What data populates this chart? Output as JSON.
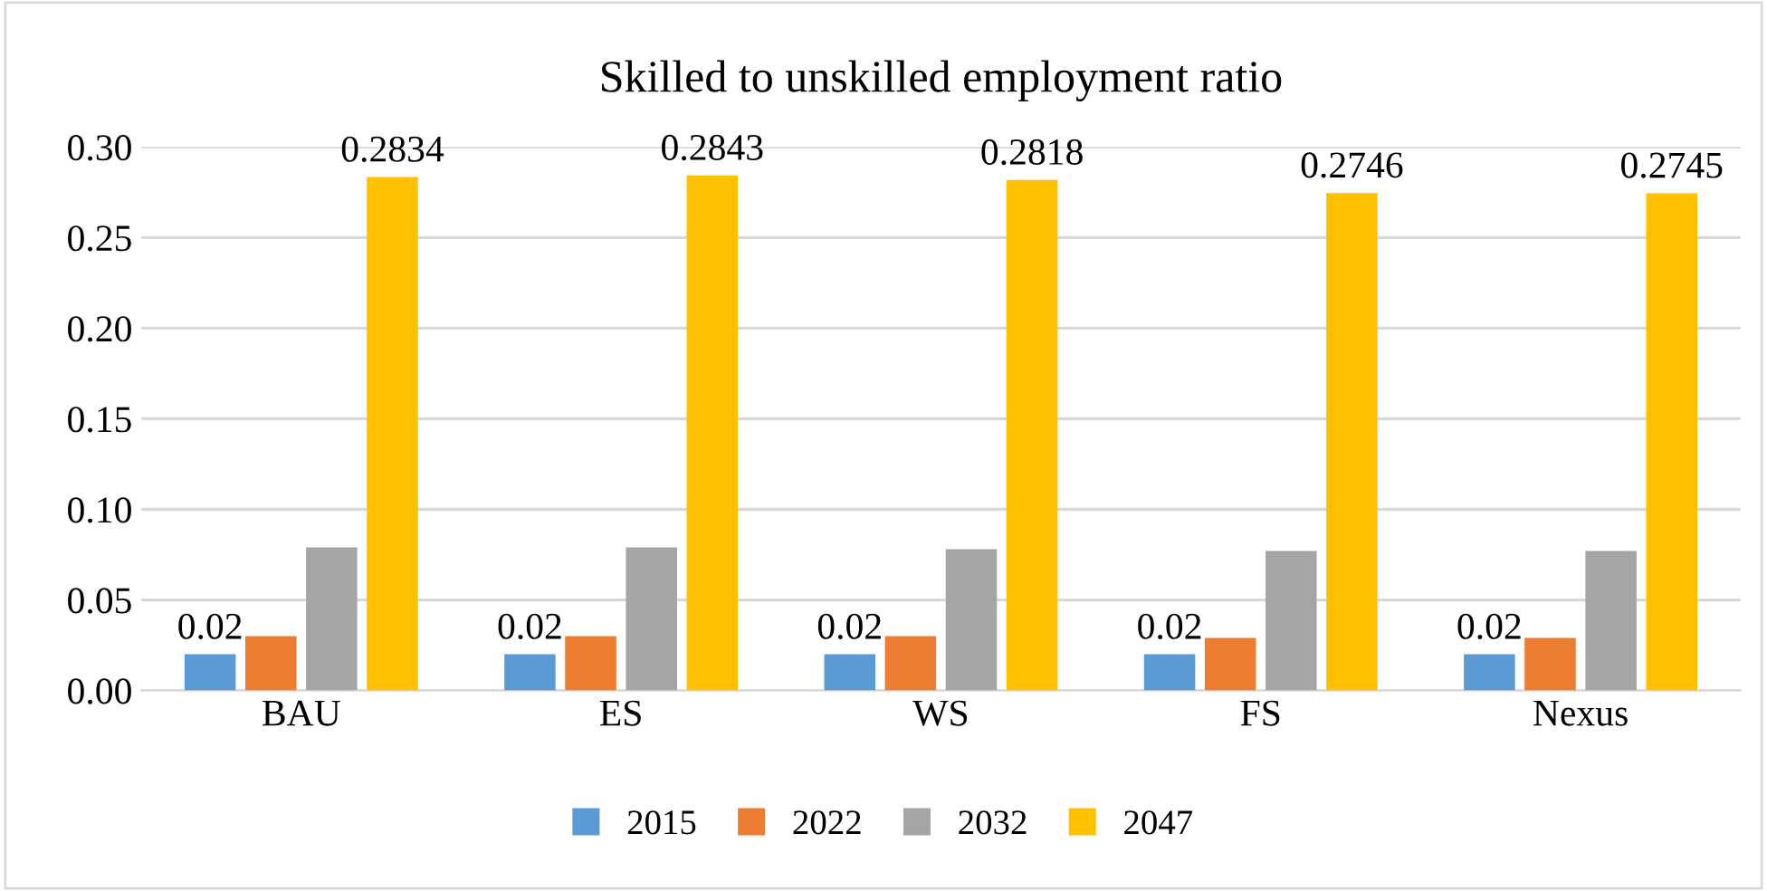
{
  "chart_data": {
    "type": "bar",
    "title": "Skilled to unskilled employment ratio",
    "categories": [
      "BAU",
      "ES",
      "WS",
      "FS",
      "Nexus"
    ],
    "series": [
      {
        "name": "2015",
        "color": "#5b9bd5",
        "values": [
          0.02,
          0.02,
          0.02,
          0.02,
          0.02
        ],
        "value_labels": [
          "0.02",
          "0.02",
          "0.02",
          "0.02",
          "0.02"
        ]
      },
      {
        "name": "2022",
        "color": "#ed7d31",
        "values": [
          0.03,
          0.03,
          0.03,
          0.029,
          0.029
        ]
      },
      {
        "name": "2032",
        "color": "#a5a5a5",
        "values": [
          0.079,
          0.079,
          0.078,
          0.077,
          0.077
        ]
      },
      {
        "name": "2047",
        "color": "#ffc000",
        "values": [
          0.2834,
          0.2843,
          0.2818,
          0.2746,
          0.2745
        ],
        "value_labels": [
          "0.2834",
          "0.2843",
          "0.2818",
          "0.2746",
          "0.2745"
        ]
      }
    ],
    "ylim": [
      0,
      0.3
    ],
    "yticks": [
      {
        "value": 0,
        "label": "0.00"
      },
      {
        "value": 0.05,
        "label": "0.05"
      },
      {
        "value": 0.1,
        "label": "0.10"
      },
      {
        "value": 0.15,
        "label": "0.15"
      },
      {
        "value": 0.2,
        "label": "0.20"
      },
      {
        "value": 0.25,
        "label": "0.25"
      },
      {
        "value": 0.3,
        "label": "0.30"
      }
    ],
    "grid": "y",
    "legend": "bottom"
  }
}
